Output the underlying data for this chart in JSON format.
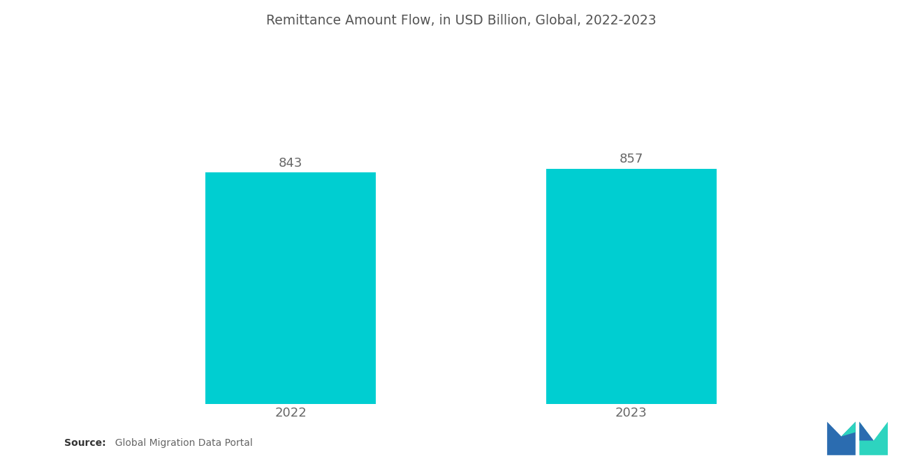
{
  "title": "Remittance Amount Flow, in USD Billion, Global, 2022-2023",
  "categories": [
    "2022",
    "2023"
  ],
  "values": [
    843,
    857
  ],
  "bar_color": "#00CED1",
  "background_color": "#ffffff",
  "title_fontsize": 13.5,
  "label_fontsize": 13,
  "value_fontsize": 13,
  "source_bold": "Source:",
  "source_rest": "  Global Migration Data Portal",
  "ylim": [
    0,
    1100
  ],
  "bar_width": 0.22,
  "x_positions": [
    0.28,
    0.72
  ]
}
